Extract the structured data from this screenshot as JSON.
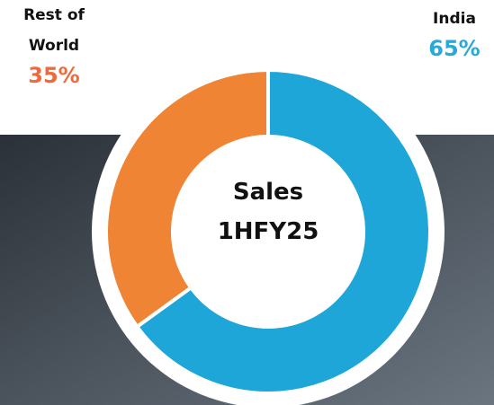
{
  "chart_data": {
    "type": "donut",
    "center_text": "Sales 1HFY25",
    "categories": [
      "India",
      "Rest of World"
    ],
    "values": [
      65,
      35
    ],
    "value_labels": [
      "65%",
      "35%"
    ],
    "colors": [
      "#1ea6d9",
      "#ef8434"
    ],
    "label_colors": [
      "#27a9dc",
      "#ee6a3c"
    ]
  }
}
